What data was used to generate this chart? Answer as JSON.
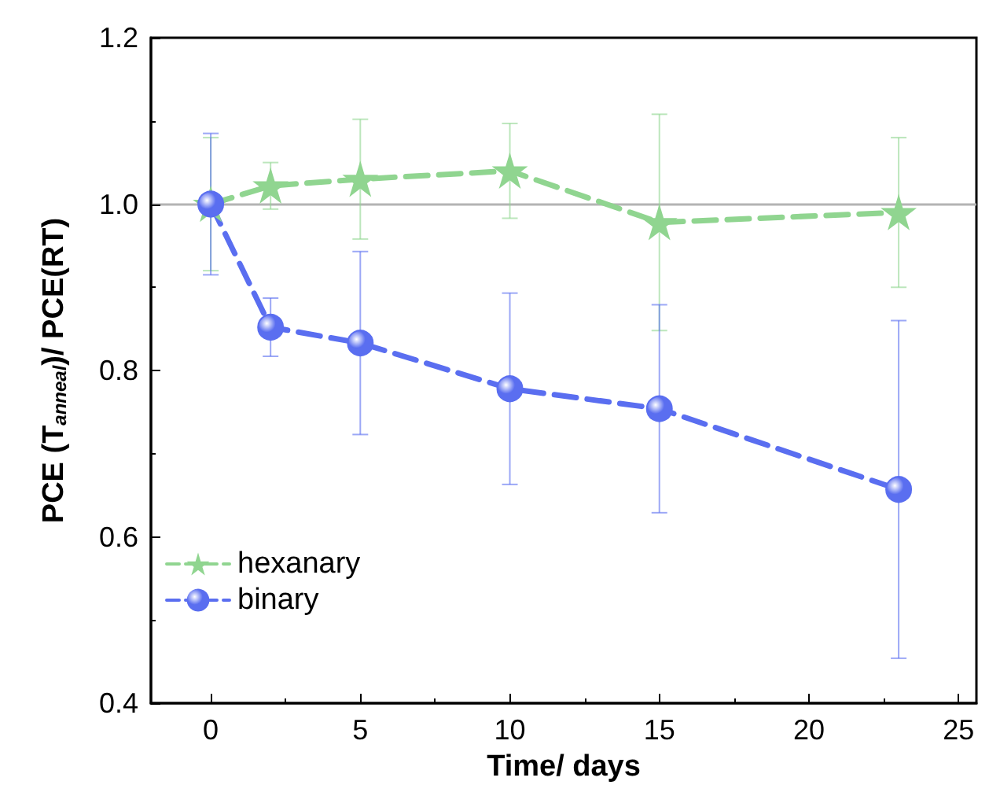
{
  "chart_data": {
    "type": "line",
    "xlabel": "Time/ days",
    "ylabel": "PCE (T$_{anneal}$)/ PCE(RT)",
    "xlim": [
      -2,
      25.6
    ],
    "xticks": [
      0,
      5,
      10,
      15,
      20,
      25
    ],
    "ylim": [
      0.4,
      1.2
    ],
    "yticks": [
      {
        "value": 0.4,
        "label": "0.4"
      },
      {
        "value": 0.6,
        "label": "0.6"
      },
      {
        "value": 0.8,
        "label": "0.8"
      },
      {
        "value": 1.0,
        "label": "1.0"
      },
      {
        "value": 1.2,
        "label": "1.2"
      }
    ],
    "grid": false,
    "legend": "bottom left",
    "line_style": "dashed",
    "ref_lines": [
      {
        "axis": "y",
        "value": 1.0,
        "color": "#b4b4b4",
        "line_style": "solid"
      }
    ],
    "series": [
      {
        "name": "hexanary",
        "color": "#90d590",
        "marker": "star",
        "x": [
          0,
          2,
          5,
          10,
          15,
          23
        ],
        "values": [
          1.0,
          1.022,
          1.03,
          1.04,
          0.978,
          0.99
        ],
        "errors": [
          0.08,
          0.028,
          0.072,
          0.057,
          0.13,
          0.09
        ]
      },
      {
        "name": "binary",
        "color": "#5a6ef0",
        "marker": "circle",
        "x": [
          0,
          2,
          5,
          10,
          15,
          23
        ],
        "values": [
          1.0,
          0.852,
          0.833,
          0.778,
          0.754,
          0.657
        ],
        "errors": [
          0.085,
          0.035,
          0.11,
          0.115,
          0.125,
          0.203
        ]
      }
    ]
  }
}
